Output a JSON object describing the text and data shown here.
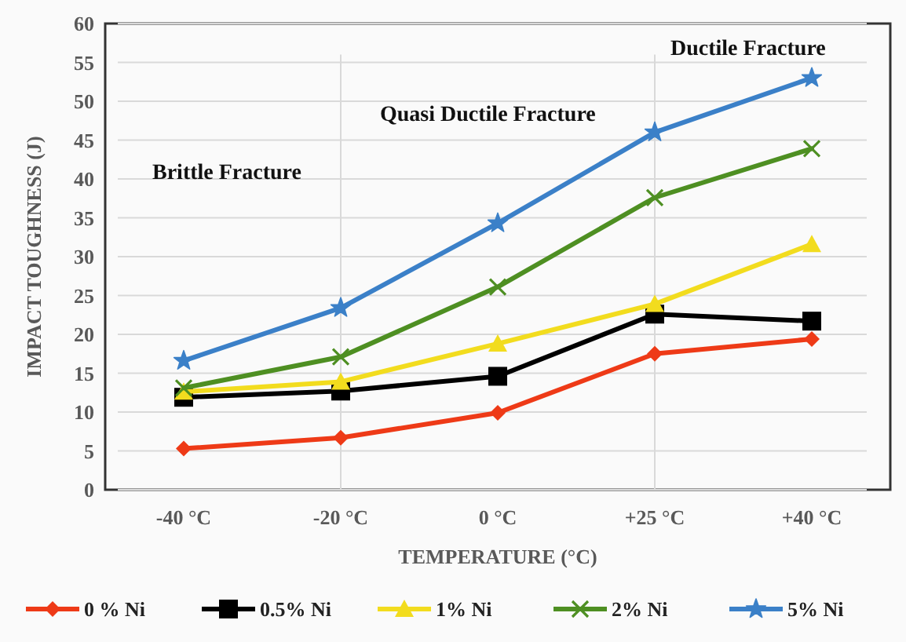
{
  "chart_data": {
    "type": "line",
    "xlabel": "TEMPERATURE (°C)",
    "ylabel": "IMPACT TOUGHNESS (J)",
    "categories": [
      "-40 °C",
      "-20 °C",
      "0 °C",
      "+25 °C",
      "+40 °C"
    ],
    "ylim": [
      0,
      60
    ],
    "yticks": [
      0,
      5,
      10,
      15,
      20,
      25,
      30,
      35,
      40,
      45,
      50,
      55,
      60
    ],
    "grid": "y",
    "legend": "bottom",
    "series": [
      {
        "name": "0 % Ni",
        "color": "#ee3a17",
        "marker": "diamond",
        "values": [
          5.3,
          6.7,
          9.9,
          17.5,
          19.4
        ]
      },
      {
        "name": "0.5% Ni",
        "color": "#000000",
        "marker": "square",
        "values": [
          11.9,
          12.7,
          14.6,
          22.6,
          21.7
        ]
      },
      {
        "name": "1% Ni",
        "color": "#f2dc1e",
        "marker": "triangle",
        "values": [
          12.6,
          13.9,
          18.8,
          23.9,
          31.6
        ]
      },
      {
        "name": "2% Ni",
        "color": "#4e8f22",
        "marker": "cross",
        "values": [
          13.1,
          17.1,
          26.1,
          37.6,
          43.9
        ]
      },
      {
        "name": "5% Ni",
        "color": "#3b80c8",
        "marker": "star",
        "values": [
          16.6,
          23.4,
          34.3,
          46.0,
          53.0
        ]
      }
    ],
    "ref_lines": [
      {
        "axis": "x",
        "value": "-20 °C",
        "color": "#d9d9d9"
      },
      {
        "axis": "x",
        "value": "+25 °C",
        "color": "#d9d9d9"
      }
    ],
    "annotations": [
      "Brittle Fracture",
      "Quasi Ductile Fracture",
      "Ductile Fracture"
    ]
  }
}
